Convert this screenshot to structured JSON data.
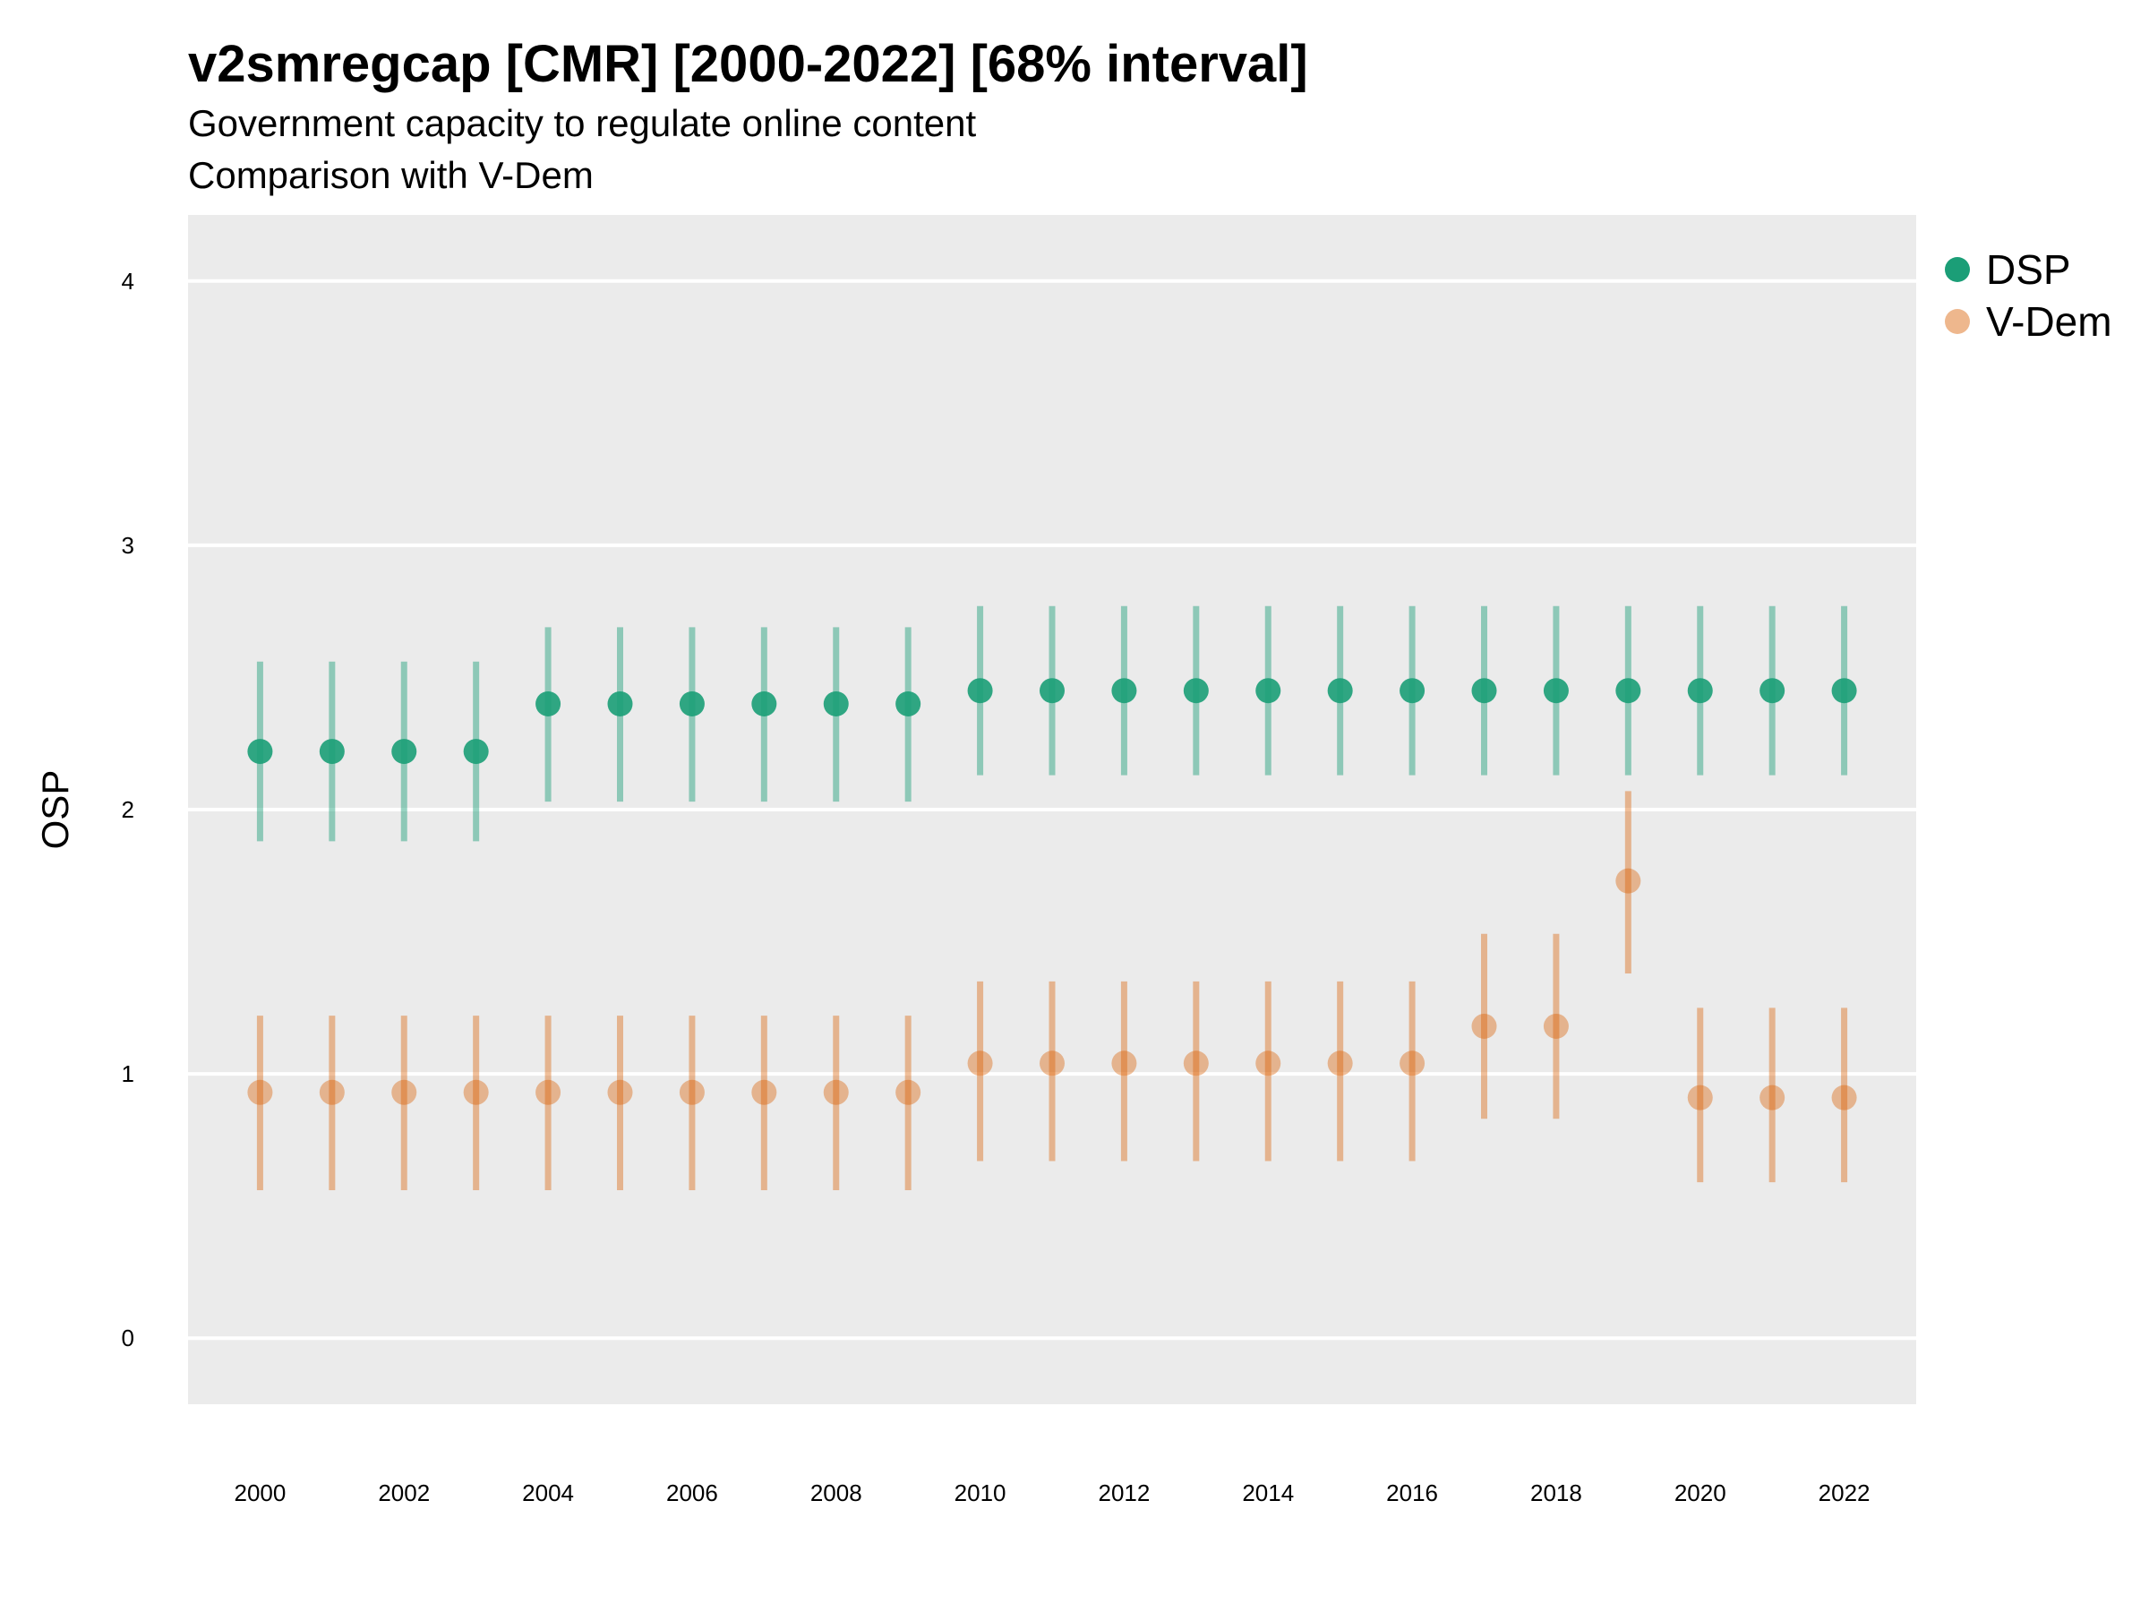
{
  "chart_data": {
    "type": "scatter",
    "title": "v2smregcap [CMR] [2000-2022] [68% interval]",
    "subtitle": "Government capacity to regulate online content",
    "subtitle2": "Comparison with V-Dem",
    "ylabel": "OSP",
    "xlabel": "",
    "ylim": [
      -0.25,
      4.25
    ],
    "xlim": [
      1999.0,
      2023.0
    ],
    "y_ticks": [
      0,
      1,
      2,
      3,
      4
    ],
    "x_ticks": [
      2000,
      2002,
      2004,
      2006,
      2008,
      2010,
      2012,
      2014,
      2016,
      2018,
      2020,
      2022
    ],
    "grid": true,
    "legend_position": "right",
    "series": [
      {
        "name": "DSP",
        "color": "#1b9e77",
        "points": [
          {
            "x": 2000,
            "y": 2.22,
            "lo": 1.88,
            "hi": 2.56
          },
          {
            "x": 2001,
            "y": 2.22,
            "lo": 1.88,
            "hi": 2.56
          },
          {
            "x": 2002,
            "y": 2.22,
            "lo": 1.88,
            "hi": 2.56
          },
          {
            "x": 2003,
            "y": 2.22,
            "lo": 1.88,
            "hi": 2.56
          },
          {
            "x": 2004,
            "y": 2.4,
            "lo": 2.03,
            "hi": 2.69
          },
          {
            "x": 2005,
            "y": 2.4,
            "lo": 2.03,
            "hi": 2.69
          },
          {
            "x": 2006,
            "y": 2.4,
            "lo": 2.03,
            "hi": 2.69
          },
          {
            "x": 2007,
            "y": 2.4,
            "lo": 2.03,
            "hi": 2.69
          },
          {
            "x": 2008,
            "y": 2.4,
            "lo": 2.03,
            "hi": 2.69
          },
          {
            "x": 2009,
            "y": 2.4,
            "lo": 2.03,
            "hi": 2.69
          },
          {
            "x": 2010,
            "y": 2.45,
            "lo": 2.13,
            "hi": 2.77
          },
          {
            "x": 2011,
            "y": 2.45,
            "lo": 2.13,
            "hi": 2.77
          },
          {
            "x": 2012,
            "y": 2.45,
            "lo": 2.13,
            "hi": 2.77
          },
          {
            "x": 2013,
            "y": 2.45,
            "lo": 2.13,
            "hi": 2.77
          },
          {
            "x": 2014,
            "y": 2.45,
            "lo": 2.13,
            "hi": 2.77
          },
          {
            "x": 2015,
            "y": 2.45,
            "lo": 2.13,
            "hi": 2.77
          },
          {
            "x": 2016,
            "y": 2.45,
            "lo": 2.13,
            "hi": 2.77
          },
          {
            "x": 2017,
            "y": 2.45,
            "lo": 2.13,
            "hi": 2.77
          },
          {
            "x": 2018,
            "y": 2.45,
            "lo": 2.13,
            "hi": 2.77
          },
          {
            "x": 2019,
            "y": 2.45,
            "lo": 2.13,
            "hi": 2.77
          },
          {
            "x": 2020,
            "y": 2.45,
            "lo": 2.13,
            "hi": 2.77
          },
          {
            "x": 2021,
            "y": 2.45,
            "lo": 2.13,
            "hi": 2.77
          },
          {
            "x": 2022,
            "y": 2.45,
            "lo": 2.13,
            "hi": 2.77
          }
        ]
      },
      {
        "name": "V-Dem",
        "color": "#d95f02",
        "points": [
          {
            "x": 2000,
            "y": 0.93,
            "lo": 0.56,
            "hi": 1.22
          },
          {
            "x": 2001,
            "y": 0.93,
            "lo": 0.56,
            "hi": 1.22
          },
          {
            "x": 2002,
            "y": 0.93,
            "lo": 0.56,
            "hi": 1.22
          },
          {
            "x": 2003,
            "y": 0.93,
            "lo": 0.56,
            "hi": 1.22
          },
          {
            "x": 2004,
            "y": 0.93,
            "lo": 0.56,
            "hi": 1.22
          },
          {
            "x": 2005,
            "y": 0.93,
            "lo": 0.56,
            "hi": 1.22
          },
          {
            "x": 2006,
            "y": 0.93,
            "lo": 0.56,
            "hi": 1.22
          },
          {
            "x": 2007,
            "y": 0.93,
            "lo": 0.56,
            "hi": 1.22
          },
          {
            "x": 2008,
            "y": 0.93,
            "lo": 0.56,
            "hi": 1.22
          },
          {
            "x": 2009,
            "y": 0.93,
            "lo": 0.56,
            "hi": 1.22
          },
          {
            "x": 2010,
            "y": 1.04,
            "lo": 0.67,
            "hi": 1.35
          },
          {
            "x": 2011,
            "y": 1.04,
            "lo": 0.67,
            "hi": 1.35
          },
          {
            "x": 2012,
            "y": 1.04,
            "lo": 0.67,
            "hi": 1.35
          },
          {
            "x": 2013,
            "y": 1.04,
            "lo": 0.67,
            "hi": 1.35
          },
          {
            "x": 2014,
            "y": 1.04,
            "lo": 0.67,
            "hi": 1.35
          },
          {
            "x": 2015,
            "y": 1.04,
            "lo": 0.67,
            "hi": 1.35
          },
          {
            "x": 2016,
            "y": 1.04,
            "lo": 0.67,
            "hi": 1.35
          },
          {
            "x": 2017,
            "y": 1.18,
            "lo": 0.83,
            "hi": 1.53
          },
          {
            "x": 2018,
            "y": 1.18,
            "lo": 0.83,
            "hi": 1.53
          },
          {
            "x": 2019,
            "y": 1.73,
            "lo": 1.38,
            "hi": 2.07
          },
          {
            "x": 2020,
            "y": 0.91,
            "lo": 0.59,
            "hi": 1.25
          },
          {
            "x": 2021,
            "y": 0.91,
            "lo": 0.59,
            "hi": 1.25
          },
          {
            "x": 2022,
            "y": 0.91,
            "lo": 0.59,
            "hi": 1.25
          }
        ]
      }
    ]
  }
}
